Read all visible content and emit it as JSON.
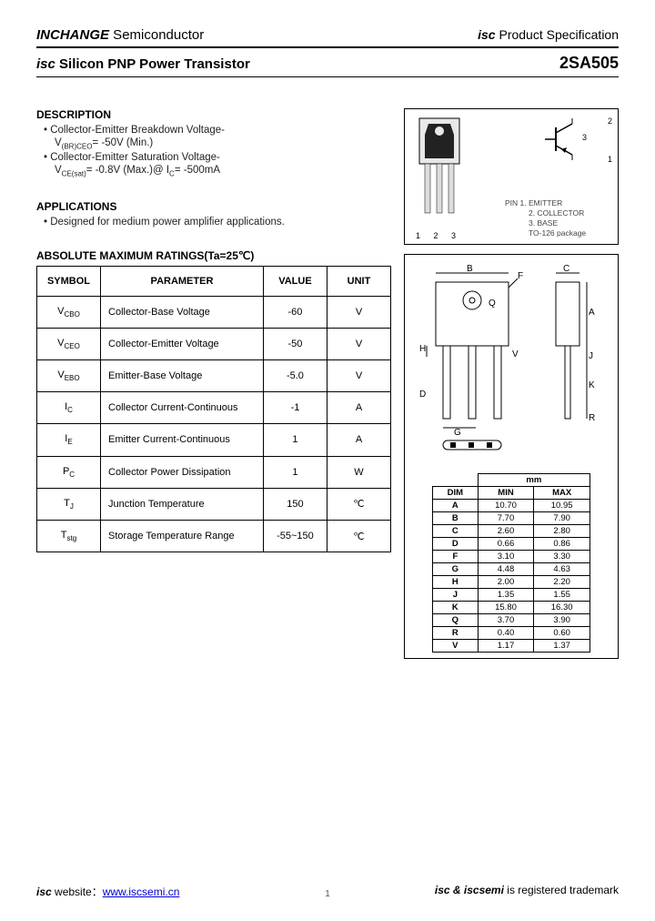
{
  "header": {
    "company_italic": "INCHANGE",
    "company_rest": " Semiconductor",
    "spec_isc": "isc",
    "spec_rest": " Product Specification"
  },
  "subheader": {
    "isc": "isc",
    "title_rest": " Silicon PNP Power Transistor",
    "partno": "2SA505"
  },
  "description": {
    "heading": "DESCRIPTION",
    "line1": "Collector-Emitter Breakdown Voltage-",
    "line1b_pre": "V",
    "line1b_sub": "(BR)CEO",
    "line1b_post": "= -50V (Min.)",
    "line2": "Collector-Emitter Saturation Voltage-",
    "line2b_pre": "V",
    "line2b_sub": "CE(sat)",
    "line2b_post": "= -0.8V (Max.)@ I",
    "line2b_sub2": "C",
    "line2b_post2": "= -500mA"
  },
  "applications": {
    "heading": "APPLICATIONS",
    "text": "Designed for medium power amplifier applications."
  },
  "ratings": {
    "heading": "ABSOLUTE MAXIMUM RATINGS(Ta=25℃)",
    "columns": [
      "SYMBOL",
      "PARAMETER",
      "VALUE",
      "UNIT"
    ],
    "rows": [
      {
        "sym_pre": "V",
        "sym_sub": "CBO",
        "param": "Collector-Base Voltage",
        "value": "-60",
        "unit": "V"
      },
      {
        "sym_pre": "V",
        "sym_sub": "CEO",
        "param": "Collector-Emitter Voltage",
        "value": "-50",
        "unit": "V"
      },
      {
        "sym_pre": "V",
        "sym_sub": "EBO",
        "param": "Emitter-Base Voltage",
        "value": "-5.0",
        "unit": "V"
      },
      {
        "sym_pre": "I",
        "sym_sub": "C",
        "param": "Collector Current-Continuous",
        "value": "-1",
        "unit": "A"
      },
      {
        "sym_pre": "I",
        "sym_sub": "E",
        "param": "Emitter Current-Continuous",
        "value": "1",
        "unit": "A"
      },
      {
        "sym_pre": "P",
        "sym_sub": "C",
        "param": "Collector Power Dissipation",
        "value": "1",
        "unit": "W"
      },
      {
        "sym_pre": "T",
        "sym_sub": "J",
        "param": "Junction Temperature",
        "value": "150",
        "unit": "℃"
      },
      {
        "sym_pre": "T",
        "sym_sub": "stg",
        "param": "Storage Temperature Range",
        "value": "-55~150",
        "unit": "℃"
      }
    ]
  },
  "package": {
    "pin1": "PIN  1. EMITTER",
    "pin2": "2. COLLECTOR",
    "pin3": "3. BASE",
    "pkgname": "TO-126 package",
    "nums": "1 2 3",
    "sym2": "2",
    "sym3": "3",
    "sym1": "1"
  },
  "dimensions": {
    "mm": "mm",
    "cols": [
      "DIM",
      "MIN",
      "MAX"
    ],
    "rows": [
      [
        "A",
        "10.70",
        "10.95"
      ],
      [
        "B",
        "7.70",
        "7.90"
      ],
      [
        "C",
        "2.60",
        "2.80"
      ],
      [
        "D",
        "0.66",
        "0.86"
      ],
      [
        "F",
        "3.10",
        "3.30"
      ],
      [
        "G",
        "4.48",
        "4.63"
      ],
      [
        "H",
        "2.00",
        "2.20"
      ],
      [
        "J",
        "1.35",
        "1.55"
      ],
      [
        "K",
        "15.80",
        "16.30"
      ],
      [
        "Q",
        "3.70",
        "3.90"
      ],
      [
        "R",
        "0.40",
        "0.60"
      ],
      [
        "V",
        "1.17",
        "1.37"
      ]
    ]
  },
  "footer": {
    "left_isc": "isc",
    "left_label": " website：",
    "url": "www.iscsemi.cn",
    "right_isc": "isc & iscsemi",
    "right_rest": " is registered trademark",
    "page": "1"
  },
  "colors": {
    "text": "#000000",
    "link": "#0000cc",
    "faint": "#444444"
  }
}
